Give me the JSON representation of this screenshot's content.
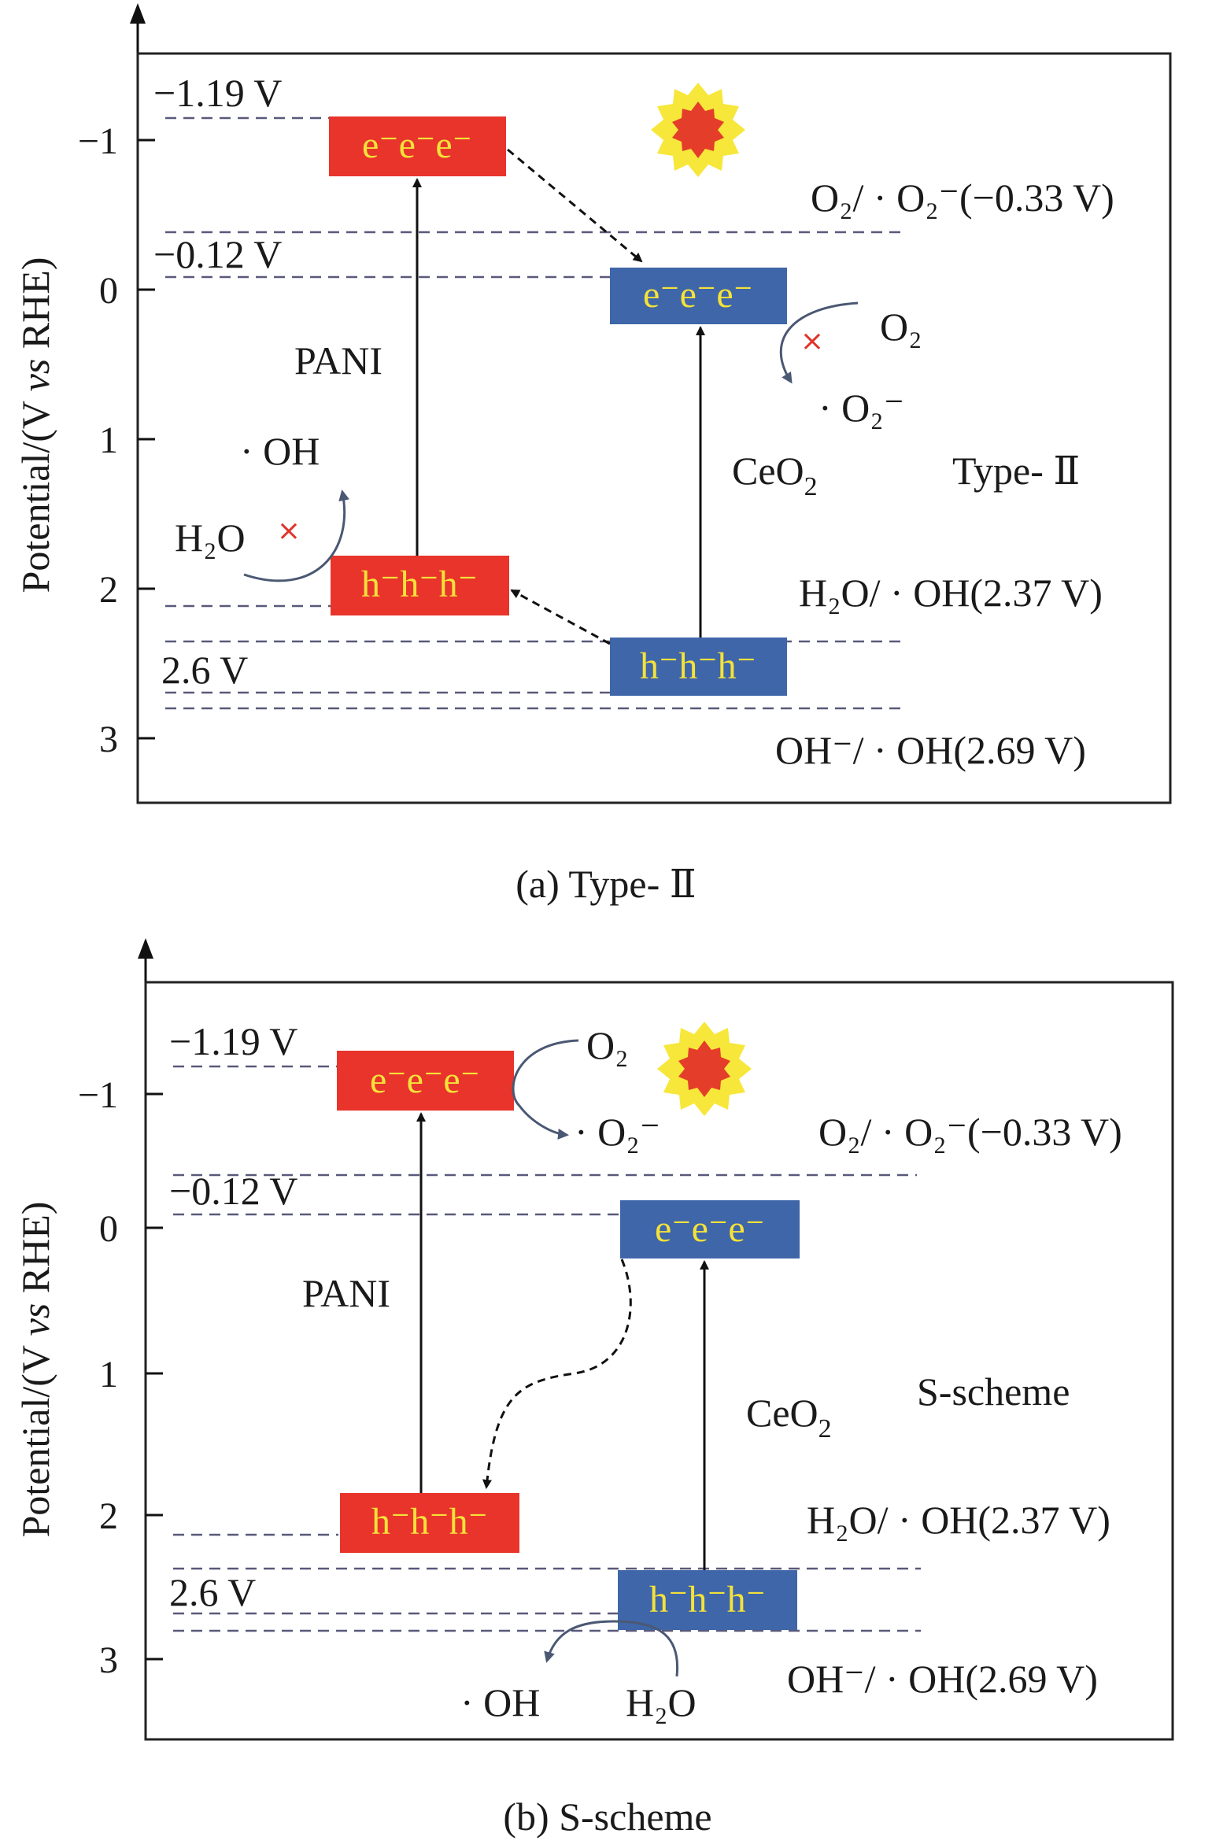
{
  "panel_a": {
    "caption": "(a) Type- Ⅱ",
    "y_axis_label": "Potential/(V vs RHE)",
    "y_axis_label_prefix": "Potential/(V ",
    "y_axis_label_italic": "vs",
    "y_axis_label_suffix": " RHE)",
    "ticks": [
      "−1",
      "0",
      "1",
      "2",
      "3"
    ],
    "pani_cb_value": "−1.19 V",
    "ceo2_cb_value": "−0.12 V",
    "ceo2_vb_value": "2.6 V",
    "pani_label": "PANI",
    "ceo2_label_base": "CeO",
    "ceo2_label_sub": "2",
    "scheme_label": "Type- Ⅱ",
    "electrons": "e⁻e⁻e⁻",
    "holes": "h⁻h⁻h⁻",
    "ref_o2": "O₂/ · O₂⁻(−0.33 V)",
    "ref_h2o": "H₂O/ · OH(2.37 V)",
    "ref_oh": "OH⁻/ · OH(2.69 V)",
    "species_o2": "O₂",
    "species_o2_radical": "· O₂⁻",
    "species_oh_radical": "· OH",
    "species_h2o": "H₂O",
    "blocked_mark": "×"
  },
  "panel_b": {
    "caption": "(b) S-scheme",
    "ticks": [
      "−1",
      "0",
      "1",
      "2",
      "3"
    ],
    "pani_cb_value": "−1.19 V",
    "ceo2_cb_value": "−0.12 V",
    "ceo2_vb_value": "2.6 V",
    "pani_label": "PANI",
    "ceo2_label_base": "CeO",
    "ceo2_label_sub": "2",
    "scheme_label": "S-scheme",
    "electrons": "e⁻e⁻e⁻",
    "holes": "h⁻h⁻h⁻",
    "ref_o2": "O₂/ · O₂⁻(−0.33 V)",
    "ref_h2o": "H₂O/ · OH(2.37 V)",
    "ref_oh": "OH⁻/ · OH(2.69 V)",
    "species_o2": "O₂",
    "species_o2_radical": "· O₂⁻",
    "species_oh_radical": "· OH",
    "species_h2o": "H₂O"
  },
  "colors": {
    "pani_band": "#e8342b",
    "ceo2_band": "#3f66a8",
    "band_text": "#f4e23a",
    "sun_outer": "#f6e73a",
    "sun_inner": "#e43d2a",
    "cross": "#e0342a"
  }
}
